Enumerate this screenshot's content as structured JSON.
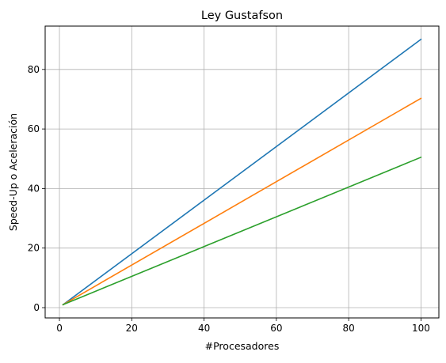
{
  "chart_data": {
    "type": "line",
    "title": "Ley Gustafson",
    "xlabel": "#Procesadores",
    "ylabel": "Speed-Up o Aceleración",
    "x": [
      1,
      100
    ],
    "series": [
      {
        "values": [
          1.0,
          90.1
        ],
        "color": "#1f77b4"
      },
      {
        "values": [
          1.0,
          70.3
        ],
        "color": "#ff7f0e"
      },
      {
        "values": [
          1.0,
          50.5
        ],
        "color": "#2ca02c"
      }
    ],
    "xlim": [
      -3.95,
      104.95
    ],
    "ylim": [
      -3.455,
      94.555
    ],
    "xticks": [
      0,
      20,
      40,
      60,
      80,
      100
    ],
    "yticks": [
      0,
      20,
      40,
      60,
      80
    ],
    "grid": true,
    "legend": "none"
  }
}
